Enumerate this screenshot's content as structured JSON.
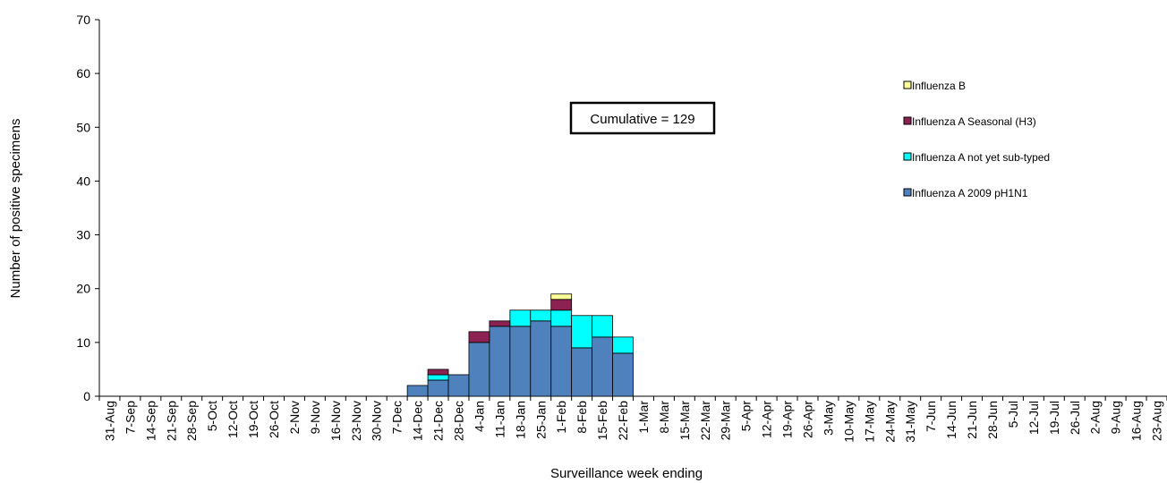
{
  "chart_data": {
    "type": "bar",
    "stacked": true,
    "ylabel": "Number of positive specimens",
    "xlabel": "Surveillance week ending",
    "ylim": [
      0,
      70
    ],
    "yticks": [
      0,
      10,
      20,
      30,
      40,
      50,
      60,
      70
    ],
    "grid": false,
    "legend_position": "right",
    "annotation": "Cumulative = 129",
    "categories": [
      "31-Aug",
      "7-Sep",
      "14-Sep",
      "21-Sep",
      "28-Sep",
      "5-Oct",
      "12-Oct",
      "19-Oct",
      "26-Oct",
      "2-Nov",
      "9-Nov",
      "16-Nov",
      "23-Nov",
      "30-Nov",
      "7-Dec",
      "14-Dec",
      "21-Dec",
      "28-Dec",
      "4-Jan",
      "11-Jan",
      "18-Jan",
      "25-Jan",
      "1-Feb",
      "8-Feb",
      "15-Feb",
      "22-Feb",
      "1-Mar",
      "8-Mar",
      "15-Mar",
      "22-Mar",
      "29-Mar",
      "5-Apr",
      "12-Apr",
      "19-Apr",
      "26-Apr",
      "3-May",
      "10-May",
      "17-May",
      "24-May",
      "31-May",
      "7-Jun",
      "14-Jun",
      "21-Jun",
      "28-Jun",
      "5-Jul",
      "12-Jul",
      "19-Jul",
      "26-Jul",
      "2-Aug",
      "9-Aug",
      "16-Aug",
      "23-Aug"
    ],
    "series": [
      {
        "name": "Influenza A 2009 pH1N1",
        "color": "#4f81bd",
        "values": [
          0,
          0,
          0,
          0,
          0,
          0,
          0,
          0,
          0,
          0,
          0,
          0,
          0,
          0,
          0,
          2,
          3,
          4,
          10,
          13,
          13,
          14,
          13,
          9,
          11,
          8,
          0,
          0,
          0,
          0,
          0,
          0,
          0,
          0,
          0,
          0,
          0,
          0,
          0,
          0,
          0,
          0,
          0,
          0,
          0,
          0,
          0,
          0,
          0,
          0,
          0,
          0
        ]
      },
      {
        "name": "Influenza A not yet sub-typed",
        "color": "#00ffff",
        "values": [
          0,
          0,
          0,
          0,
          0,
          0,
          0,
          0,
          0,
          0,
          0,
          0,
          0,
          0,
          0,
          0,
          1,
          0,
          0,
          0,
          3,
          2,
          3,
          6,
          4,
          3,
          0,
          0,
          0,
          0,
          0,
          0,
          0,
          0,
          0,
          0,
          0,
          0,
          0,
          0,
          0,
          0,
          0,
          0,
          0,
          0,
          0,
          0,
          0,
          0,
          0,
          0
        ]
      },
      {
        "name": "Influenza A Seasonal (H3)",
        "color": "#8b2252",
        "values": [
          0,
          0,
          0,
          0,
          0,
          0,
          0,
          0,
          0,
          0,
          0,
          0,
          0,
          0,
          0,
          0,
          1,
          0,
          2,
          1,
          0,
          0,
          2,
          0,
          0,
          0,
          0,
          0,
          0,
          0,
          0,
          0,
          0,
          0,
          0,
          0,
          0,
          0,
          0,
          0,
          0,
          0,
          0,
          0,
          0,
          0,
          0,
          0,
          0,
          0,
          0,
          0
        ]
      },
      {
        "name": "Influenza B",
        "color": "#ffff99",
        "values": [
          0,
          0,
          0,
          0,
          0,
          0,
          0,
          0,
          0,
          0,
          0,
          0,
          0,
          0,
          0,
          0,
          0,
          0,
          0,
          0,
          0,
          0,
          1,
          0,
          0,
          0,
          0,
          0,
          0,
          0,
          0,
          0,
          0,
          0,
          0,
          0,
          0,
          0,
          0,
          0,
          0,
          0,
          0,
          0,
          0,
          0,
          0,
          0,
          0,
          0,
          0,
          0
        ]
      }
    ],
    "legend_order": [
      "Influenza B",
      "Influenza A Seasonal (H3)",
      "Influenza A not yet sub-typed",
      "Influenza A 2009 pH1N1"
    ]
  }
}
